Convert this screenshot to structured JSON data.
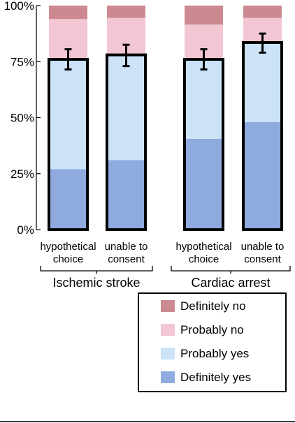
{
  "chart_data": {
    "type": "bar",
    "stacked": true,
    "y_tick_labels": [
      "0%",
      "25%",
      "50%",
      "75%",
      "100%"
    ],
    "ylim": [
      0,
      100
    ],
    "groups": [
      {
        "label": "Ischemic stroke",
        "categories": [
          "hypothetical choice",
          "unable to consent"
        ]
      },
      {
        "label": "Cardiac arrest",
        "categories": [
          "hypothetical choice",
          "unable to consent"
        ]
      }
    ],
    "categories": [
      {
        "line1": "hypothetical",
        "line2": "choice"
      },
      {
        "line1": "unable to",
        "line2": "consent"
      },
      {
        "line1": "hypothetical",
        "line2": "choice"
      },
      {
        "line1": "unable to",
        "line2": "consent"
      }
    ],
    "series": [
      {
        "name": "Definitely yes",
        "color": "#8eaadf",
        "values": [
          27,
          31,
          40.5,
          48
        ]
      },
      {
        "name": "Probably yes",
        "color": "#cce3f7",
        "values": [
          49,
          47,
          35.5,
          35.5
        ]
      },
      {
        "name": "Probably no",
        "color": "#f3c6d3",
        "values": [
          18,
          16.5,
          15.5,
          11
        ]
      },
      {
        "name": "Definitely no",
        "color": "#cc8a90",
        "values": [
          6,
          5.5,
          8.5,
          5.5
        ]
      }
    ],
    "yes_total": {
      "values": [
        76,
        78,
        76,
        83.5
      ],
      "error_low": [
        71.5,
        73,
        71.5,
        79
      ],
      "error_high": [
        80.5,
        82.5,
        80.5,
        87.5
      ]
    },
    "legend_order": [
      "Definitely no",
      "Probably no",
      "Probably yes",
      "Definitely yes"
    ],
    "legend_position": "bottom-right"
  }
}
